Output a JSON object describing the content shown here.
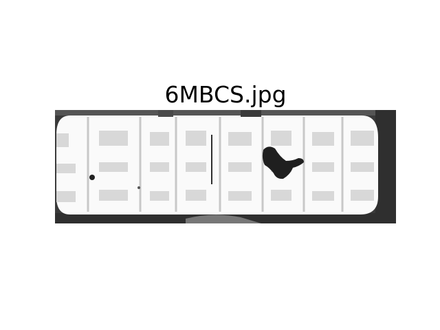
{
  "figure": {
    "title": "6MBCS.jpg"
  },
  "image": {
    "description_icon": "grayscale-captcha-image",
    "palette": {
      "background": "#ffffff",
      "dark": "#2f2f2f",
      "mid": "#8d8d8d",
      "light": "#d9d9d9"
    }
  }
}
